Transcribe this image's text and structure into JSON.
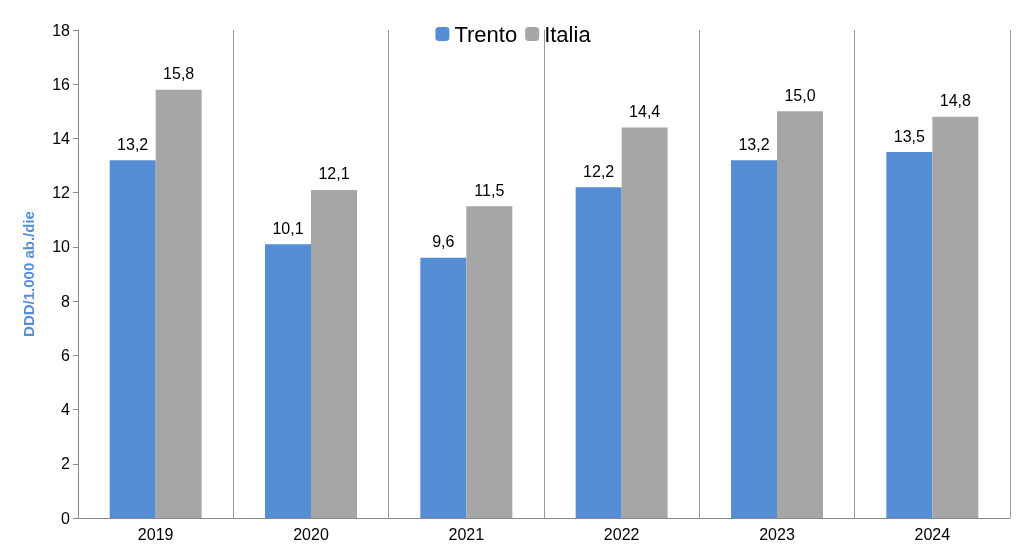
{
  "chart_data": {
    "type": "bar",
    "ylabel": "DDD/1.000 ab./die",
    "categories": [
      "2019",
      "2020",
      "2021",
      "2022",
      "2023",
      "2024"
    ],
    "series": [
      {
        "name": "Trento",
        "color": "#558ed5",
        "values": [
          13.2,
          10.1,
          9.6,
          12.2,
          13.2,
          13.5
        ],
        "value_labels": [
          "13,2",
          "10,1",
          "9,6",
          "12,2",
          "13,2",
          "13,5"
        ]
      },
      {
        "name": "Italia",
        "color": "#a6a6a6",
        "values": [
          15.8,
          12.1,
          11.5,
          14.4,
          15.0,
          14.8
        ],
        "value_labels": [
          "15,8",
          "12,1",
          "11,5",
          "14,4",
          "15,0",
          "14,8"
        ]
      }
    ],
    "ylim": [
      0,
      18
    ],
    "yticks": [
      0,
      2,
      4,
      6,
      8,
      10,
      12,
      14,
      16,
      18
    ],
    "grid": "x",
    "legend": "top"
  }
}
